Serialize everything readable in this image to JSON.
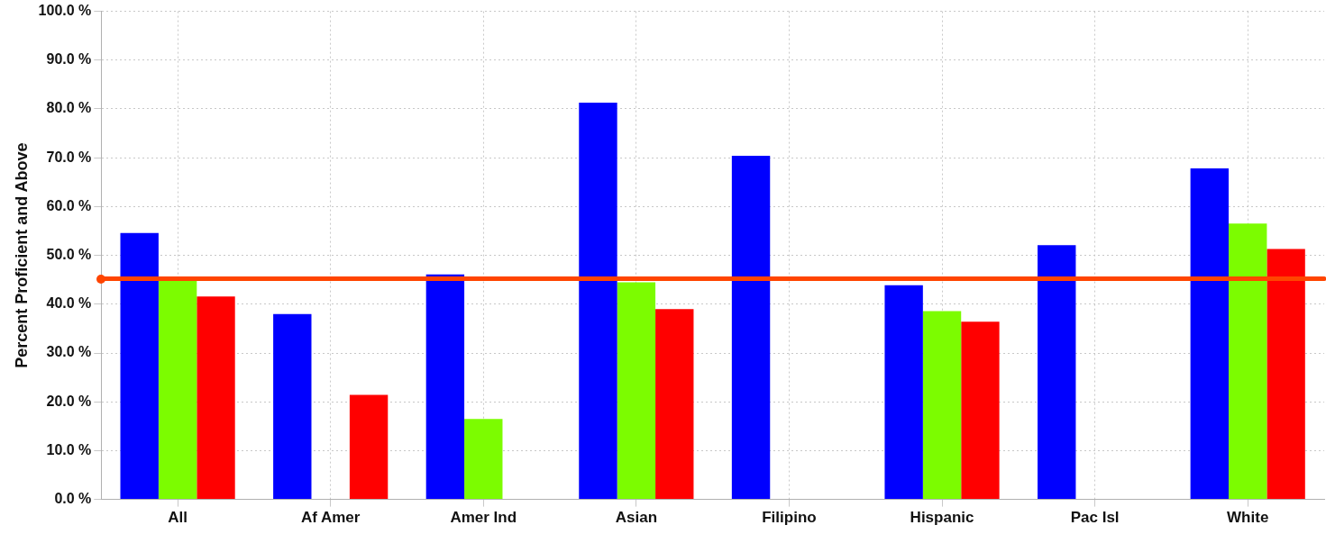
{
  "chart_data": {
    "type": "bar",
    "ylabel": "Percent Proficient and Above",
    "categories": [
      "All",
      "Af Amer",
      "Amer Ind",
      "Asian",
      "Filipino",
      "Hispanic",
      "Pac Isl",
      "White"
    ],
    "series": [
      {
        "color": "#0000ff",
        "values": [
          54.6,
          38.0,
          46.1,
          81.3,
          70.4,
          43.9,
          52.1,
          67.8
        ]
      },
      {
        "color": "#7cfc00",
        "values": [
          45.0,
          0,
          16.5,
          44.5,
          null,
          38.6,
          null,
          56.5
        ]
      },
      {
        "color": "#ff0000",
        "values": [
          41.6,
          21.4,
          null,
          39.0,
          null,
          36.4,
          null,
          51.3
        ]
      }
    ],
    "ylim": [
      0,
      100
    ],
    "yticks": [
      {
        "value": 0,
        "label": "0.0 %"
      },
      {
        "value": 10,
        "label": "10.0 %"
      },
      {
        "value": 20,
        "label": "20.0 %"
      },
      {
        "value": 30,
        "label": "30.0 %"
      },
      {
        "value": 40,
        "label": "40.0 %"
      },
      {
        "value": 50,
        "label": "50.0 %"
      },
      {
        "value": 60,
        "label": "60.0 %"
      },
      {
        "value": 70,
        "label": "70.0 %"
      },
      {
        "value": 80,
        "label": "80.0 %"
      },
      {
        "value": 90,
        "label": "90.0 %"
      },
      {
        "value": 100,
        "label": "100.0 %"
      }
    ],
    "ref_lines": [
      {
        "axis": "y",
        "value": 45.2,
        "color": "#ff4500",
        "line_style": "solid"
      }
    ],
    "grid": true,
    "legend": false
  }
}
